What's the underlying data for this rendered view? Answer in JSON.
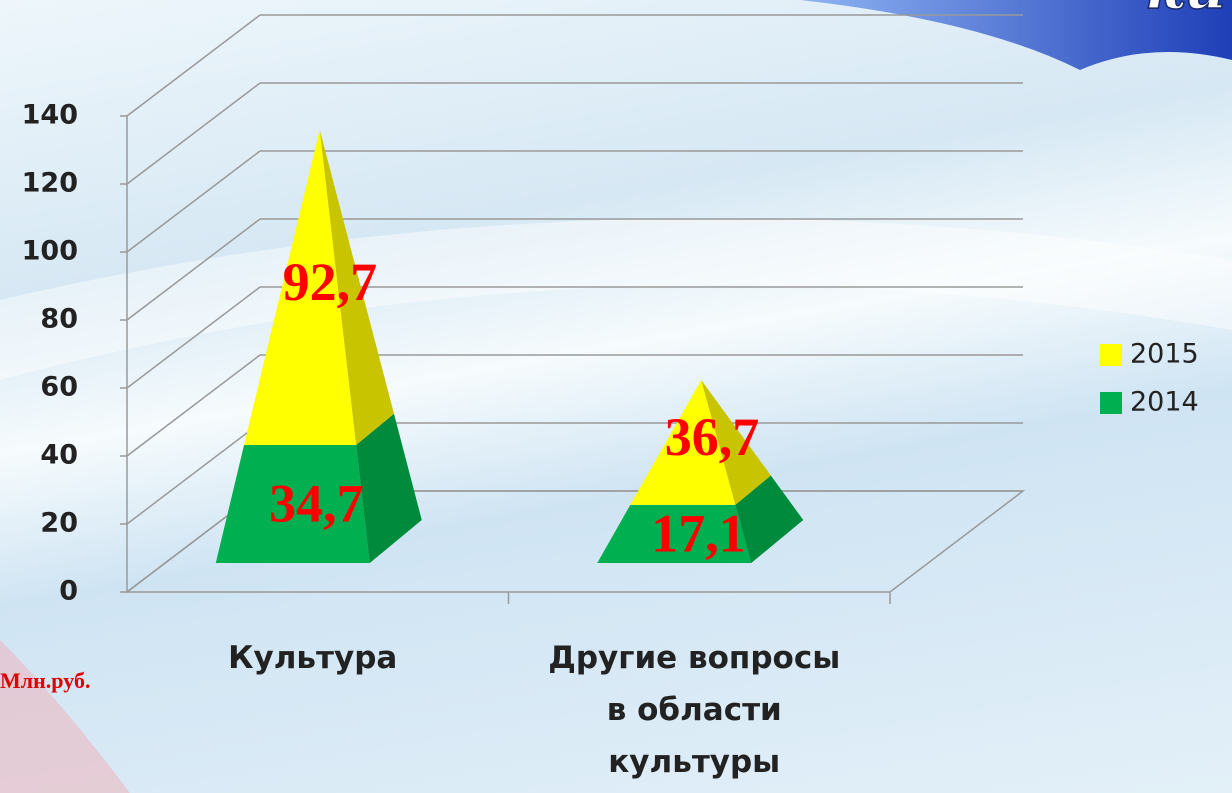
{
  "chart_data": {
    "type": "pyramid3d",
    "title": "ки",
    "y_label": "Млн.руб.",
    "categories": [
      "Культура",
      "Другие вопросы в области культуры"
    ],
    "series": [
      {
        "name": "2014",
        "color": "#00b050",
        "values": [
          34.7,
          17.1
        ],
        "value_labels": [
          "34,7",
          "17,1"
        ]
      },
      {
        "name": "2015",
        "color": "#ffff00",
        "values": [
          92.7,
          36.7
        ],
        "value_labels": [
          "92,7",
          "36,7"
        ]
      }
    ],
    "ylim": [
      0,
      140
    ],
    "yticks": [
      0,
      20,
      40,
      60,
      80,
      100,
      120,
      140
    ],
    "grid": true,
    "legend": "right"
  }
}
